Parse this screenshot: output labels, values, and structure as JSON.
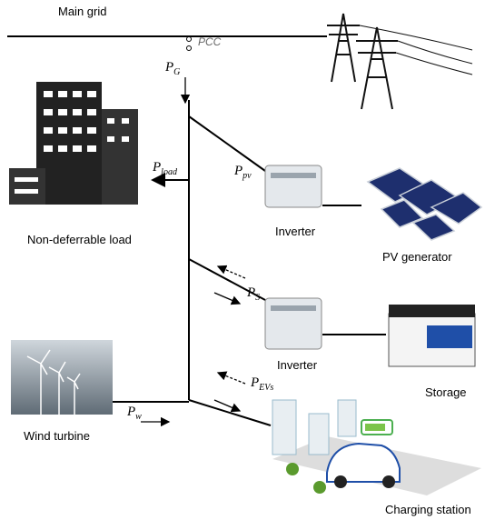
{
  "title": "Main grid",
  "pcc": "PCC",
  "powers": [
    {
      "symbol": "P",
      "subscript": "G"
    },
    {
      "symbol": "P",
      "subscript": "load"
    },
    {
      "symbol": "P",
      "subscript": "pv"
    },
    {
      "symbol": "P",
      "subscript": "S"
    },
    {
      "symbol": "P",
      "subscript": "EVs"
    },
    {
      "symbol": "P",
      "subscript": "w"
    }
  ],
  "components": {
    "load": "Non-deferrable load",
    "inverter_pv": "Inverter",
    "pv": "PV generator",
    "inverter_storage": "Inverter",
    "storage": "Storage",
    "wind": "Wind turbine",
    "charging": "Charging station"
  }
}
